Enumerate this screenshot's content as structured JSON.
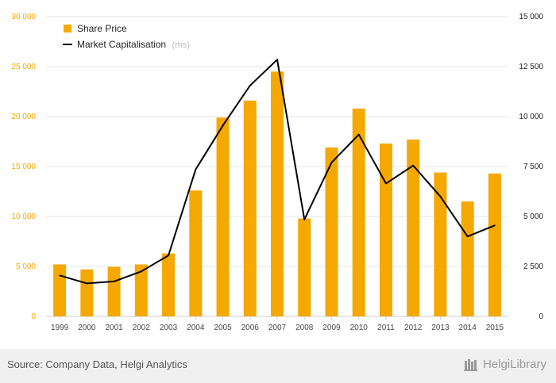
{
  "chart_data": {
    "type": "bar",
    "categories": [
      "1999",
      "2000",
      "2001",
      "2002",
      "2003",
      "2004",
      "2005",
      "2006",
      "2007",
      "2008",
      "2009",
      "2010",
      "2011",
      "2012",
      "2013",
      "2014",
      "2015"
    ],
    "series": [
      {
        "name": "Share Price",
        "type": "bar",
        "axis": "left",
        "values": [
          5200,
          4700,
          4950,
          5200,
          6300,
          12600,
          19900,
          21600,
          24500,
          9800,
          16900,
          20800,
          17300,
          17700,
          14400,
          11500,
          14300
        ]
      },
      {
        "name": "Market Capitalisation",
        "type": "line",
        "axis": "right",
        "values": [
          2050,
          1650,
          1750,
          2250,
          3050,
          7350,
          9550,
          11550,
          12850,
          4850,
          7700,
          9100,
          6650,
          7550,
          6000,
          4000,
          4550
        ]
      }
    ],
    "y_left": {
      "ylim": [
        0,
        30000
      ],
      "ticks": [
        "0",
        "5 000",
        "10 000",
        "15 000",
        "20 000",
        "25 000",
        "30 000"
      ]
    },
    "y_right": {
      "ylim": [
        0,
        15000
      ],
      "ticks": [
        "0",
        "2 500",
        "5 000",
        "7 500",
        "10 000",
        "12 500",
        "15 000"
      ]
    },
    "legend": {
      "position": "top-left",
      "rhs_note": "(rhs)"
    },
    "grid": true,
    "colors": {
      "bar": "#f5a800",
      "line": "#000000",
      "grid": "#e6e6e6",
      "left_ticks": "#f5a800"
    }
  },
  "footer": {
    "source": "Source: Company Data, Helgi Analytics",
    "brand": "HelgiLibrary"
  }
}
